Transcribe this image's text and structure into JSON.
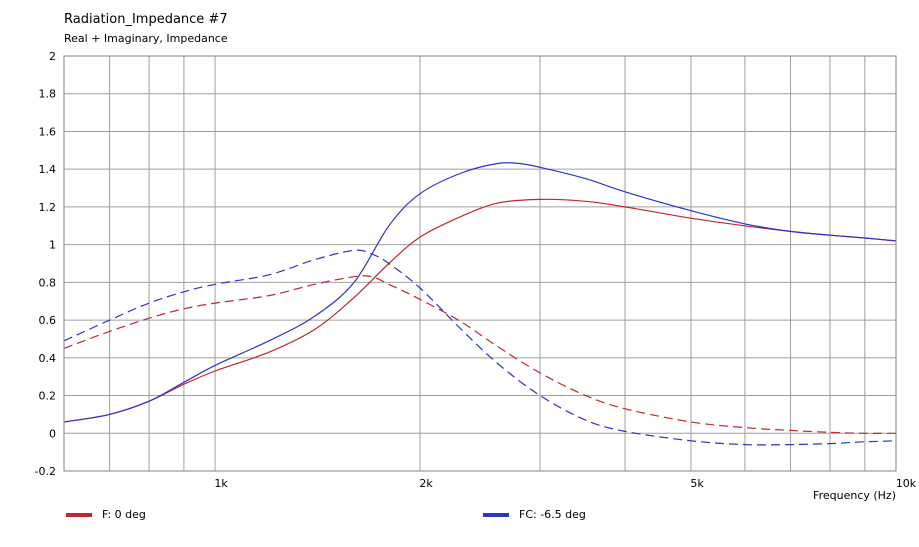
{
  "chart_data": {
    "type": "line",
    "title": "Radiation_Impedance #7",
    "subtitle": "Real + Imaginary, Impedance",
    "xlabel": "Frequency  (Hz)",
    "ylabel": "",
    "xscale": "log",
    "xlim": [
      600,
      10000
    ],
    "ylim": [
      -0.2,
      2
    ],
    "y_ticks": [
      -0.2,
      0,
      0.2,
      0.4,
      0.6,
      0.8,
      1,
      1.2,
      1.4,
      1.6,
      1.8,
      2
    ],
    "y_tick_labels": [
      "-0.2",
      "0",
      "0.2",
      "0.4",
      "0.6",
      "0.8",
      "1",
      "1.2",
      "1.4",
      "1.6",
      "1.8",
      "2"
    ],
    "x_major_ticks": [
      1000,
      2000,
      5000,
      10000
    ],
    "x_tick_labels": [
      "1k",
      "2k",
      "5k",
      "10k"
    ],
    "x_minor_gridlines": [
      700,
      800,
      900,
      3000,
      4000,
      6000,
      7000,
      8000,
      9000
    ],
    "grid": true,
    "legend_position": "bottom",
    "series": [
      {
        "name": "F: 0 deg",
        "color": "#c0282d",
        "component": "real",
        "dash": "solid",
        "x": [
          600,
          700,
          800,
          900,
          1000,
          1200,
          1400,
          1600,
          1800,
          2000,
          2300,
          2600,
          3000,
          3500,
          4000,
          5000,
          6000,
          7000,
          8000,
          9000,
          10000
        ],
        "y": [
          0.06,
          0.1,
          0.17,
          0.26,
          0.33,
          0.43,
          0.55,
          0.72,
          0.9,
          1.04,
          1.15,
          1.22,
          1.24,
          1.23,
          1.2,
          1.14,
          1.1,
          1.07,
          1.05,
          1.035,
          1.02
        ]
      },
      {
        "name": "F: 0 deg",
        "color": "#c0282d",
        "component": "imaginary",
        "dash": "dashed",
        "x": [
          600,
          700,
          800,
          900,
          1000,
          1200,
          1400,
          1600,
          1700,
          1800,
          2000,
          2300,
          2600,
          3000,
          3500,
          4000,
          5000,
          6000,
          7000,
          8000,
          9000,
          10000
        ],
        "y": [
          0.45,
          0.54,
          0.61,
          0.66,
          0.69,
          0.73,
          0.79,
          0.83,
          0.83,
          0.79,
          0.71,
          0.59,
          0.46,
          0.32,
          0.2,
          0.13,
          0.06,
          0.03,
          0.015,
          0.005,
          0.0,
          0.0
        ]
      },
      {
        "name": "FC: -6.5 deg",
        "color": "#2b35c8",
        "component": "real",
        "dash": "solid",
        "x": [
          600,
          700,
          800,
          900,
          1000,
          1200,
          1400,
          1600,
          1800,
          2000,
          2300,
          2600,
          2800,
          3000,
          3500,
          4000,
          5000,
          6000,
          7000,
          8000,
          9000,
          10000
        ],
        "y": [
          0.06,
          0.1,
          0.17,
          0.27,
          0.36,
          0.49,
          0.62,
          0.8,
          1.1,
          1.27,
          1.38,
          1.43,
          1.43,
          1.41,
          1.35,
          1.28,
          1.18,
          1.11,
          1.07,
          1.05,
          1.035,
          1.02
        ]
      },
      {
        "name": "FC: -6.5 deg",
        "color": "#2b35c8",
        "component": "imaginary",
        "dash": "dashed",
        "x": [
          600,
          700,
          800,
          900,
          1000,
          1200,
          1400,
          1600,
          1700,
          1800,
          2000,
          2300,
          2600,
          3000,
          3500,
          4000,
          5000,
          6000,
          7000,
          8000,
          9000,
          10000
        ],
        "y": [
          0.49,
          0.6,
          0.69,
          0.75,
          0.79,
          0.84,
          0.92,
          0.97,
          0.95,
          0.9,
          0.77,
          0.55,
          0.37,
          0.2,
          0.07,
          0.01,
          -0.04,
          -0.06,
          -0.06,
          -0.055,
          -0.045,
          -0.04
        ]
      }
    ]
  },
  "legend": [
    {
      "label": "F: 0 deg",
      "color": "#c0282d"
    },
    {
      "label": "FC: -6.5 deg",
      "color": "#2b35c8"
    }
  ]
}
